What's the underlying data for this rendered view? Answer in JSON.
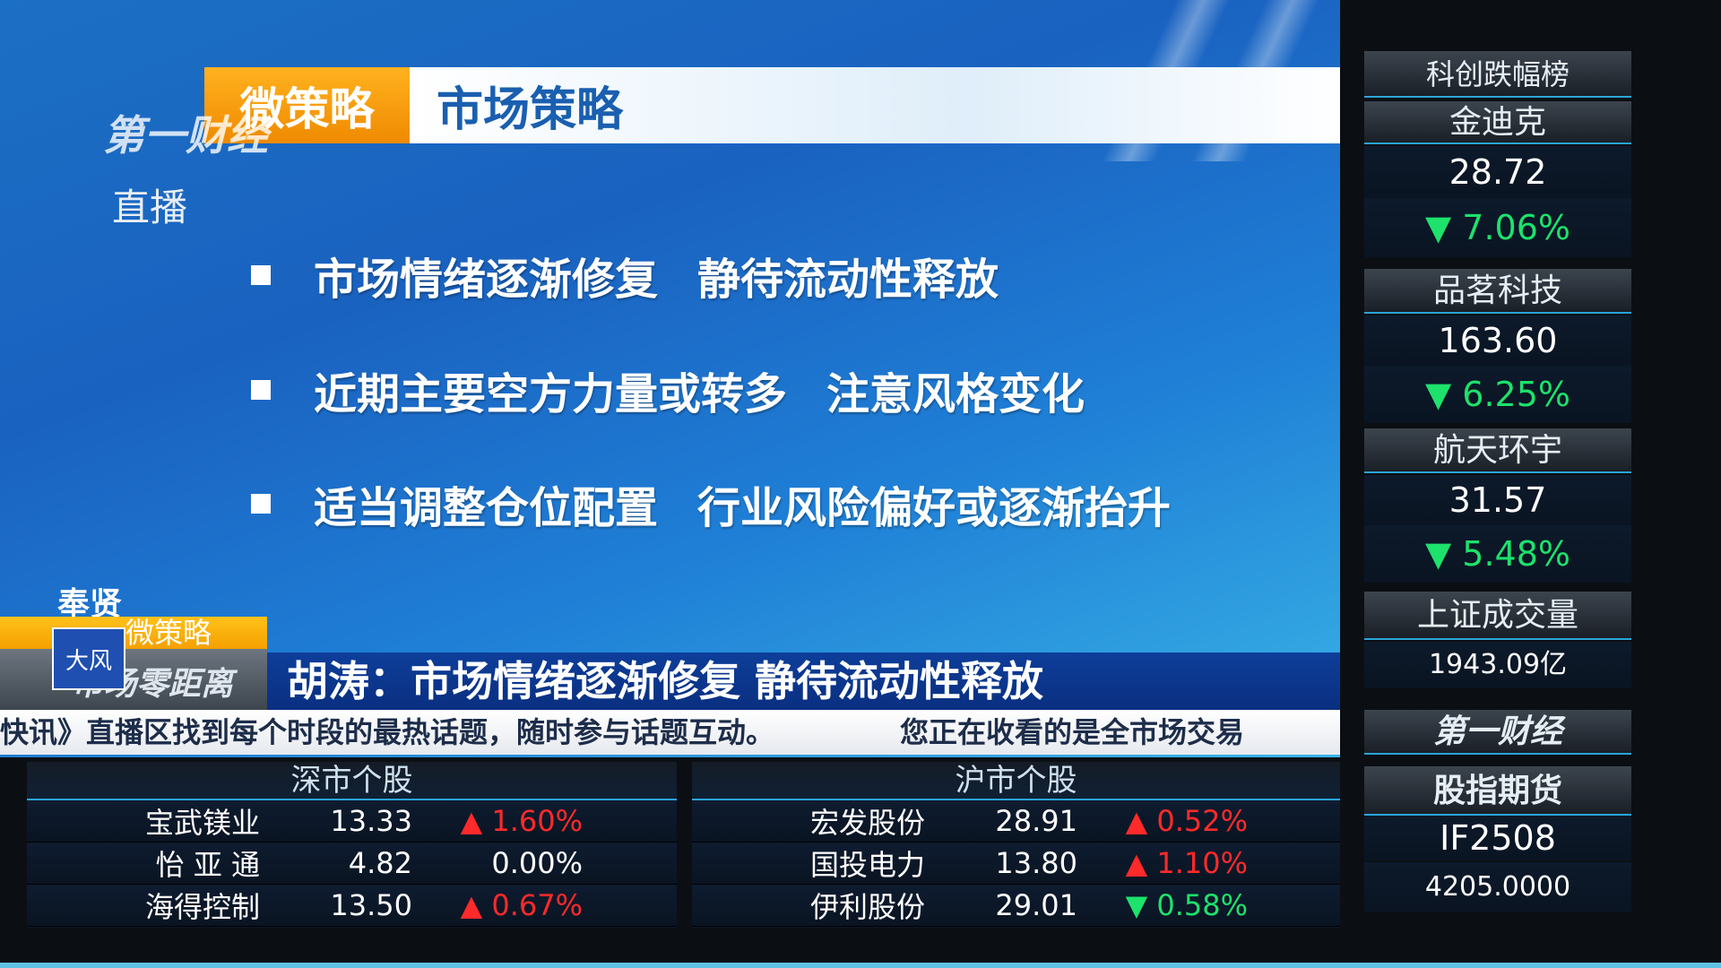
{
  "header": {
    "tag": "微策略",
    "title": "市场策略"
  },
  "logo": "第一财经",
  "live": "直播",
  "bullets": [
    "市场情绪逐渐修复",
    "静待流动性释放",
    "近期主要空方力量或转多",
    "注意风格变化",
    "适当调整仓位配置",
    "行业风险偏好或逐渐抬升"
  ],
  "location": "奉贤",
  "lower_third": {
    "tag": "微策略",
    "program": "市场零距离",
    "badge": "大风",
    "headline": "胡涛：市场情绪逐渐修复 静待流动性释放"
  },
  "ticker": [
    "快讯》直播区找到每个时段的最热话题，随时参与话题互动。",
    "您正在收看的是全市场交易"
  ],
  "colors": {
    "up": "#ff2a2a",
    "down": "#1de26b",
    "accent": "#f5a000",
    "headline_bg": "#0d3e9a"
  },
  "shenzhen": {
    "title": "深市个股",
    "rows": [
      {
        "name": "宝武镁业",
        "price": "13.33",
        "change": "▲ 1.60%",
        "dir": "up"
      },
      {
        "name": "怡 亚 通",
        "price": "4.82",
        "change": "0.00%",
        "dir": "flat"
      },
      {
        "name": "海得控制",
        "price": "13.50",
        "change": "▲ 0.67%",
        "dir": "up"
      }
    ]
  },
  "shanghai": {
    "title": "沪市个股",
    "rows": [
      {
        "name": "宏发股份",
        "price": "28.91",
        "change": "▲ 0.52%",
        "dir": "up"
      },
      {
        "name": "国投电力",
        "price": "13.80",
        "change": "▲ 1.10%",
        "dir": "up"
      },
      {
        "name": "伊利股份",
        "price": "29.01",
        "change": "▼ 0.58%",
        "dir": "down"
      }
    ]
  },
  "star_losers": {
    "title": "科创跌幅榜",
    "items": [
      {
        "name": "金迪克",
        "price": "28.72",
        "change": "▼ 7.06%"
      },
      {
        "name": "品茗科技",
        "price": "163.60",
        "change": "▼ 6.25%"
      },
      {
        "name": "航天环宇",
        "price": "31.57",
        "change": "▼ 5.48%"
      }
    ]
  },
  "sh_volume": {
    "title": "上证成交量",
    "value": "1943.09亿"
  },
  "side_logo": "第一财经",
  "futures": {
    "title": "股指期货",
    "code": "IF2508",
    "value": "4205.0000"
  }
}
